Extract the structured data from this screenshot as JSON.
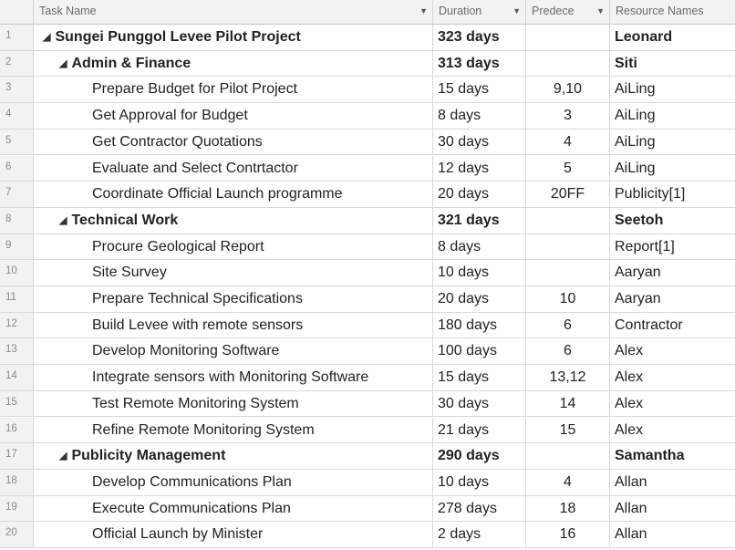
{
  "columns": {
    "task_name": "Task Name",
    "duration": "Duration",
    "predecessors": "Predece",
    "resource_names": "Resource Names"
  },
  "rows": [
    {
      "id": "1",
      "name": "Sungei Punggol Levee Pilot Project",
      "duration": "323 days",
      "pred": "",
      "resource": "Leonard",
      "level": 0,
      "summary": true
    },
    {
      "id": "2",
      "name": "Admin & Finance",
      "duration": "313 days",
      "pred": "",
      "resource": "Siti",
      "level": 1,
      "summary": true
    },
    {
      "id": "3",
      "name": "Prepare Budget for Pilot Project",
      "duration": "15 days",
      "pred": "9,10",
      "resource": "AiLing",
      "level": 2,
      "summary": false
    },
    {
      "id": "4",
      "name": "Get Approval for Budget",
      "duration": "8 days",
      "pred": "3",
      "resource": "AiLing",
      "level": 2,
      "summary": false
    },
    {
      "id": "5",
      "name": "Get Contractor Quotations",
      "duration": "30 days",
      "pred": "4",
      "resource": "AiLing",
      "level": 2,
      "summary": false
    },
    {
      "id": "6",
      "name": "Evaluate and Select Contrtactor",
      "duration": "12 days",
      "pred": "5",
      "resource": "AiLing",
      "level": 2,
      "summary": false
    },
    {
      "id": "7",
      "name": "Coordinate Official Launch programme",
      "duration": "20 days",
      "pred": "20FF",
      "resource": "Publicity[1]",
      "level": 2,
      "summary": false
    },
    {
      "id": "8",
      "name": "Technical Work",
      "duration": "321 days",
      "pred": "",
      "resource": "Seetoh",
      "level": 1,
      "summary": true
    },
    {
      "id": "9",
      "name": "Procure Geological Report",
      "duration": "8 days",
      "pred": "",
      "resource": "Report[1]",
      "level": 2,
      "summary": false
    },
    {
      "id": "10",
      "name": "Site Survey",
      "duration": "10 days",
      "pred": "",
      "resource": "Aaryan",
      "level": 2,
      "summary": false
    },
    {
      "id": "11",
      "name": "Prepare Technical Specifications",
      "duration": "20 days",
      "pred": "10",
      "resource": "Aaryan",
      "level": 2,
      "summary": false
    },
    {
      "id": "12",
      "name": "Build Levee with remote sensors",
      "duration": "180 days",
      "pred": "6",
      "resource": "Contractor",
      "level": 2,
      "summary": false
    },
    {
      "id": "13",
      "name": "Develop Monitoring Software",
      "duration": "100 days",
      "pred": "6",
      "resource": "Alex",
      "level": 2,
      "summary": false
    },
    {
      "id": "14",
      "name": "Integrate sensors with Monitoring Software",
      "duration": "15 days",
      "pred": "13,12",
      "resource": "Alex",
      "level": 2,
      "summary": false
    },
    {
      "id": "15",
      "name": "Test Remote Monitoring System",
      "duration": "30 days",
      "pred": "14",
      "resource": "Alex",
      "level": 2,
      "summary": false
    },
    {
      "id": "16",
      "name": "Refine Remote Monitoring System",
      "duration": "21 days",
      "pred": "15",
      "resource": "Alex",
      "level": 2,
      "summary": false
    },
    {
      "id": "17",
      "name": "Publicity Management",
      "duration": "290 days",
      "pred": "",
      "resource": "Samantha",
      "level": 1,
      "summary": true
    },
    {
      "id": "18",
      "name": "Develop Communications Plan",
      "duration": "10 days",
      "pred": "4",
      "resource": "Allan",
      "level": 2,
      "summary": false
    },
    {
      "id": "19",
      "name": "Execute Communications Plan",
      "duration": "278 days",
      "pred": "18",
      "resource": "Allan",
      "level": 2,
      "summary": false
    },
    {
      "id": "20",
      "name": "Official Launch by Minister",
      "duration": "2 days",
      "pred": "16",
      "resource": "Allan",
      "level": 2,
      "summary": false
    }
  ],
  "icons": {
    "collapse": "collapse-triangle-icon",
    "dropdown": "dropdown-arrow-icon"
  }
}
